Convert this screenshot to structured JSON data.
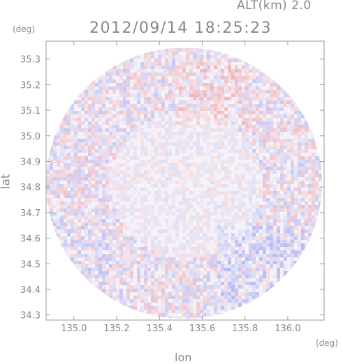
{
  "header": {
    "altitude": "ALT(km)  2.0",
    "timestamp": "2012/09/14  18:25:23"
  },
  "chart_data": {
    "type": "heatmap",
    "title": "2012/09/14 18:25:23",
    "xlabel": "lon",
    "ylabel": "lat",
    "x_unit": "(deg)",
    "y_unit": "(deg)",
    "xlim": [
      134.87,
      136.17
    ],
    "ylim": [
      34.28,
      35.37
    ],
    "x_ticks": [
      135.0,
      135.2,
      135.4,
      135.6,
      135.8,
      136.0
    ],
    "x_tick_labels": [
      "135.0",
      "135.2",
      "135.4",
      "135.6",
      "135.8",
      "136.0"
    ],
    "y_ticks": [
      34.3,
      34.4,
      34.5,
      34.6,
      34.7,
      34.8,
      34.9,
      35.0,
      35.1,
      35.2,
      35.3
    ],
    "y_tick_labels": [
      "34.3",
      "34.4",
      "34.5",
      "34.6",
      "34.7",
      "34.8",
      "34.9",
      "35.0",
      "35.1",
      "35.2",
      "35.3"
    ],
    "domain_center": [
      135.515,
      34.815
    ],
    "domain_radius_deg_lon": 0.645,
    "domain_radius_deg_lat": 0.53,
    "colors": {
      "positive": "#f2a0a0",
      "negative": "#a0a8f2",
      "background_disc": "#f4f1f8",
      "axis": "#999999"
    }
  }
}
